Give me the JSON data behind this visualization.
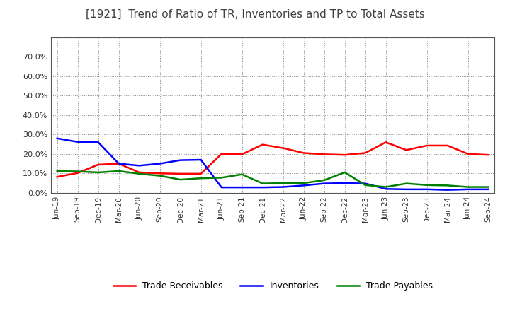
{
  "title": "[1921]  Trend of Ratio of TR, Inventories and TP to Total Assets",
  "x_labels": [
    "Jun-19",
    "Sep-19",
    "Dec-19",
    "Mar-20",
    "Jun-20",
    "Sep-20",
    "Dec-20",
    "Mar-21",
    "Jun-21",
    "Sep-21",
    "Dec-21",
    "Mar-22",
    "Jun-22",
    "Sep-22",
    "Dec-22",
    "Mar-23",
    "Jun-23",
    "Sep-23",
    "Dec-23",
    "Mar-24",
    "Jun-24",
    "Sep-24"
  ],
  "trade_receivables": [
    0.082,
    0.102,
    0.145,
    0.15,
    0.105,
    0.1,
    0.098,
    0.098,
    0.2,
    0.198,
    0.248,
    0.23,
    0.205,
    0.198,
    0.195,
    0.205,
    0.26,
    0.22,
    0.243,
    0.243,
    0.2,
    0.195
  ],
  "inventories": [
    0.28,
    0.262,
    0.26,
    0.15,
    0.14,
    0.15,
    0.168,
    0.17,
    0.028,
    0.028,
    0.028,
    0.03,
    0.038,
    0.048,
    0.05,
    0.048,
    0.02,
    0.018,
    0.018,
    0.015,
    0.018,
    0.018
  ],
  "trade_payables": [
    0.112,
    0.11,
    0.105,
    0.112,
    0.098,
    0.088,
    0.068,
    0.075,
    0.078,
    0.095,
    0.048,
    0.05,
    0.05,
    0.065,
    0.105,
    0.04,
    0.03,
    0.048,
    0.04,
    0.038,
    0.03,
    0.03
  ],
  "tr_color": "#ff0000",
  "inv_color": "#0000ff",
  "tp_color": "#008000",
  "ylim": [
    0.0,
    0.8
  ],
  "yticks": [
    0.0,
    0.1,
    0.2,
    0.3,
    0.4,
    0.5,
    0.6,
    0.7
  ],
  "background_color": "#ffffff",
  "plot_bg_color": "#f0f0f0",
  "grid_color": "#888888",
  "title_color": "#404040",
  "legend_labels": [
    "Trade Receivables",
    "Inventories",
    "Trade Payables"
  ]
}
